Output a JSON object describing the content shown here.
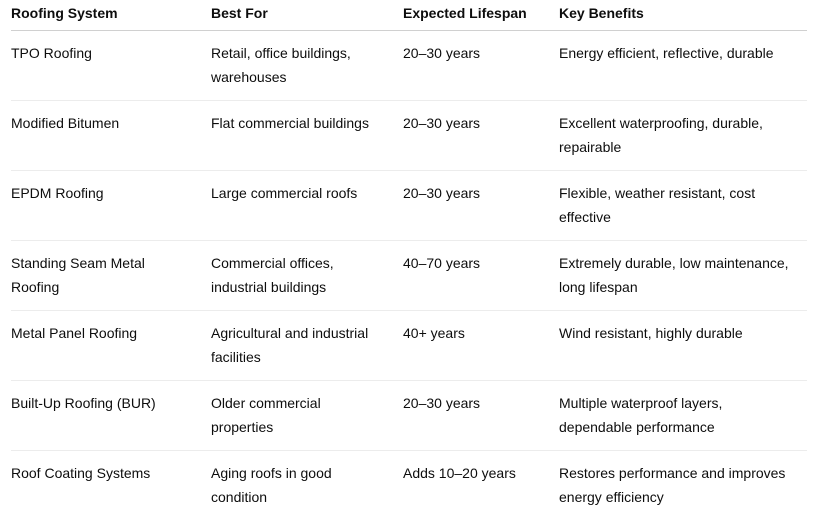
{
  "table": {
    "header": [
      "Roofing System",
      "Best For",
      "Expected Lifespan",
      "Key Benefits"
    ],
    "rows": [
      [
        "TPO Roofing",
        "Retail, office buildings, warehouses",
        "20–30 years",
        "Energy efficient, reflective, durable"
      ],
      [
        "Modified Bitumen",
        "Flat commercial buildings",
        "20–30 years",
        "Excellent waterproofing, durable, repairable"
      ],
      [
        "EPDM Roofing",
        "Large commercial roofs",
        "20–30 years",
        "Flexible, weather resistant, cost effective"
      ],
      [
        "Standing Seam Metal Roofing",
        "Commercial offices, industrial buildings",
        "40–70 years",
        "Extremely durable, low maintenance, long lifespan"
      ],
      [
        "Metal Panel Roofing",
        "Agricultural and industrial facilities",
        "40+ years",
        "Wind resistant, highly durable"
      ],
      [
        "Built-Up Roofing (BUR)",
        "Older commercial properties",
        "20–30 years",
        "Multiple waterproof layers, dependable performance"
      ],
      [
        "Roof Coating Systems",
        "Aging roofs in good condition",
        "Adds 10–20 years",
        "Restores performance and improves energy efficiency"
      ]
    ]
  }
}
